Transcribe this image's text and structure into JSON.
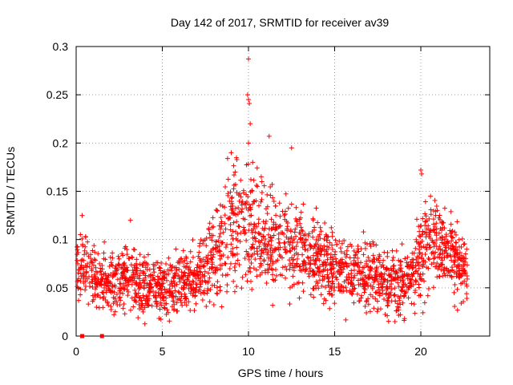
{
  "chart_data": {
    "type": "scatter",
    "title": "Day 142 of 2017, SRMTID for receiver av39",
    "xlabel": "GPS time / hours",
    "ylabel": "SRMTID / TECUs",
    "xlim": [
      0,
      24
    ],
    "ylim": [
      0,
      0.3
    ],
    "xticks": [
      0,
      5,
      10,
      15,
      20
    ],
    "xtick_labels": [
      "0",
      "5",
      "10",
      "15",
      "20"
    ],
    "yticks": [
      0,
      0.05,
      0.1,
      0.15,
      0.2,
      0.25,
      0.3
    ],
    "ytick_labels": [
      "0",
      "0.05",
      "0.1",
      "0.15",
      "0.2",
      "0.25",
      "0.3"
    ],
    "grid": true,
    "marker": "plus",
    "series": [
      {
        "name": "SRMTID",
        "color": "#ff0000",
        "envelope_hours": [
          0,
          1,
          2,
          3,
          4,
          5,
          6,
          7,
          7.5,
          8,
          8.5,
          9,
          9.5,
          10,
          10.5,
          11,
          11.5,
          12,
          12.5,
          13,
          14,
          15,
          16,
          17,
          18,
          19,
          19.5,
          20,
          20.5,
          21,
          21.5,
          22,
          22.7
        ],
        "envelope_mean": [
          0.07,
          0.065,
          0.055,
          0.06,
          0.05,
          0.05,
          0.055,
          0.06,
          0.07,
          0.085,
          0.1,
          0.115,
          0.12,
          0.13,
          0.115,
          0.1,
          0.095,
          0.095,
          0.09,
          0.085,
          0.075,
          0.07,
          0.065,
          0.065,
          0.055,
          0.055,
          0.065,
          0.08,
          0.095,
          0.095,
          0.09,
          0.08,
          0.065
        ],
        "envelope_spread": [
          0.02,
          0.02,
          0.018,
          0.02,
          0.02,
          0.02,
          0.02,
          0.022,
          0.025,
          0.03,
          0.035,
          0.04,
          0.045,
          0.045,
          0.04,
          0.035,
          0.033,
          0.035,
          0.033,
          0.03,
          0.025,
          0.023,
          0.022,
          0.022,
          0.02,
          0.02,
          0.025,
          0.03,
          0.03,
          0.028,
          0.025,
          0.022,
          0.018
        ],
        "start_hour": 0.05,
        "end_hour": 22.7,
        "point_count": 2200,
        "outliers": [
          {
            "x": 10.0,
            "y": 0.287
          },
          {
            "x": 9.95,
            "y": 0.25
          },
          {
            "x": 10.0,
            "y": 0.245
          },
          {
            "x": 10.05,
            "y": 0.241
          },
          {
            "x": 10.1,
            "y": 0.22
          },
          {
            "x": 11.2,
            "y": 0.207
          },
          {
            "x": 10.0,
            "y": 0.2
          },
          {
            "x": 12.5,
            "y": 0.195
          },
          {
            "x": 9.0,
            "y": 0.19
          },
          {
            "x": 20.0,
            "y": 0.172
          },
          {
            "x": 20.05,
            "y": 0.168
          },
          {
            "x": 0.35,
            "y": 0.125
          },
          {
            "x": 3.15,
            "y": 0.12
          },
          {
            "x": 18.5,
            "y": 0.015
          }
        ],
        "zero_markers": [
          {
            "x": 0.35,
            "y": 0.0
          },
          {
            "x": 1.5,
            "y": 0.0
          }
        ]
      }
    ]
  }
}
